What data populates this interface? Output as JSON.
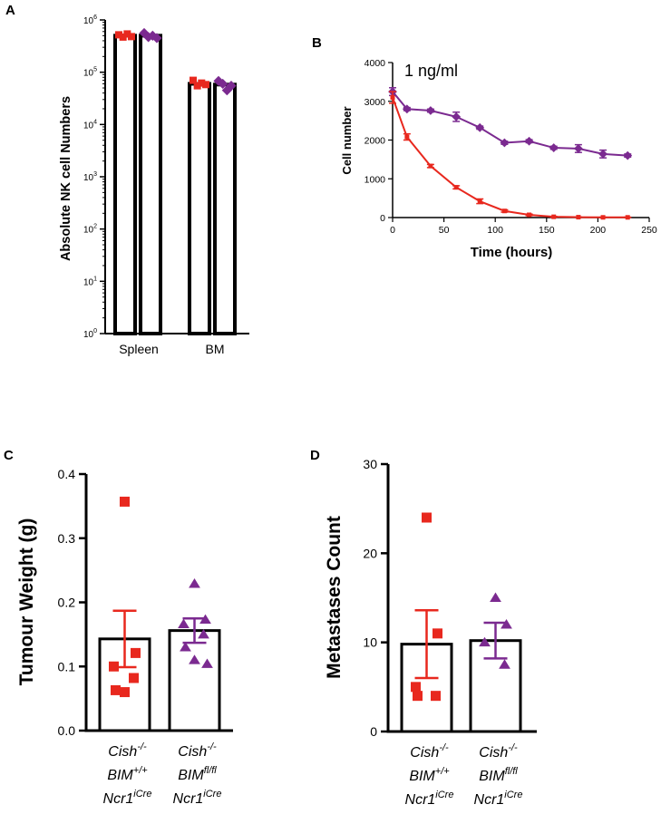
{
  "colors": {
    "red": "#E8281E",
    "purple": "#7B2A90",
    "axis": "#000000"
  },
  "chart_data": [
    {
      "panel": "A",
      "type": "bar",
      "yscale": "log",
      "ylabel": "Absolute NK cell Numbers",
      "xlabel": "",
      "ylim": [
        1,
        1000000
      ],
      "ytick_labels": [
        {
          "base": "10",
          "exp": "0"
        },
        {
          "base": "10",
          "exp": "1"
        },
        {
          "base": "10",
          "exp": "2"
        },
        {
          "base": "10",
          "exp": "3"
        },
        {
          "base": "10",
          "exp": "4"
        },
        {
          "base": "10",
          "exp": "5"
        },
        {
          "base": "10",
          "exp": "6"
        }
      ],
      "categories": [
        "Spleen",
        "BM"
      ],
      "series": [
        {
          "name": "red squares",
          "color": "#E8281E",
          "values": [
            500000,
            60000
          ],
          "points": [
            [
              520000,
              470000,
              540000,
              480000
            ],
            [
              70000,
              55000,
              62000,
              58000
            ]
          ]
        },
        {
          "name": "purple diamonds",
          "color": "#7B2A90",
          "values": [
            500000,
            58000
          ],
          "points": [
            [
              560000,
              470000,
              500000,
              450000
            ],
            [
              68000,
              60000,
              45000,
              55000
            ]
          ]
        }
      ]
    },
    {
      "panel": "B",
      "type": "line",
      "title": "1 ng/ml",
      "xlabel": "Time (hours)",
      "ylabel": "Cell number",
      "xlim": [
        0,
        250
      ],
      "ylim": [
        0,
        4000
      ],
      "xticks": [
        0,
        50,
        100,
        150,
        200,
        250
      ],
      "yticks": [
        0,
        1000,
        2000,
        3000,
        4000
      ],
      "series": [
        {
          "name": "purple",
          "color": "#7B2A90",
          "marker": "diamond",
          "x": [
            0,
            14,
            37,
            62,
            85,
            109,
            133,
            157,
            181,
            205,
            229
          ],
          "y": [
            3250,
            2800,
            2760,
            2600,
            2320,
            1930,
            1970,
            1800,
            1780,
            1640,
            1600
          ],
          "err": [
            100,
            40,
            40,
            120,
            40,
            40,
            40,
            40,
            100,
            100,
            40
          ]
        },
        {
          "name": "red",
          "color": "#E8281E",
          "marker": "square",
          "x": [
            0,
            14,
            37,
            62,
            85,
            109,
            133,
            157,
            181,
            205,
            229
          ],
          "y": [
            3100,
            2080,
            1330,
            780,
            420,
            170,
            70,
            20,
            10,
            5,
            5
          ],
          "err": [
            150,
            80,
            40,
            40,
            60,
            30,
            20,
            10,
            5,
            5,
            5
          ]
        }
      ]
    },
    {
      "panel": "C",
      "type": "bar",
      "ylabel": "Tumour Weight (g)",
      "ylim": [
        0,
        0.4
      ],
      "yticks": [
        "0.0",
        "0.1",
        "0.2",
        "0.3",
        "0.4"
      ],
      "yvalues": [
        0,
        0.1,
        0.2,
        0.3,
        0.4
      ],
      "categories": [
        {
          "line1_base": "Cish",
          "line1_sup": "-/-",
          "line2_base": "BIM",
          "line2_sup": "+/+",
          "line3_base": "Ncr1",
          "line3_sup": "iCre"
        },
        {
          "line1_base": "Cish",
          "line1_sup": "-/-",
          "line2_base": "BIM",
          "line2_sup": "fl/fl",
          "line3_base": "Ncr1",
          "line3_sup": "iCre"
        }
      ],
      "series": [
        {
          "name": "Cish-/- BIM+/+ Ncr1iCre",
          "color": "#E8281E",
          "marker": "square",
          "mean": 0.143,
          "sem": 0.044,
          "points": [
            0.357,
            0.121,
            0.1,
            0.063,
            0.06,
            0.082
          ]
        },
        {
          "name": "Cish-/- BIMfl/fl Ncr1iCre",
          "color": "#7B2A90",
          "marker": "triangle",
          "mean": 0.156,
          "sem": 0.019,
          "points": [
            0.229,
            0.173,
            0.166,
            0.15,
            0.13,
            0.11,
            0.104
          ]
        }
      ]
    },
    {
      "panel": "D",
      "type": "bar",
      "ylabel": "Metastases Count",
      "ylim": [
        0,
        30
      ],
      "yticks": [
        "0",
        "10",
        "20",
        "30"
      ],
      "yvalues": [
        0,
        10,
        20,
        30
      ],
      "categories": [
        {
          "line1_base": "Cish",
          "line1_sup": "-/-",
          "line2_base": "BIM",
          "line2_sup": "+/+",
          "line3_base": "Ncr1",
          "line3_sup": "iCre"
        },
        {
          "line1_base": "Cish",
          "line1_sup": "-/-",
          "line2_base": "BIM",
          "line2_sup": "fl/fl",
          "line3_base": "Ncr1",
          "line3_sup": "iCre"
        }
      ],
      "series": [
        {
          "name": "Cish-/- BIM+/+ Ncr1iCre",
          "color": "#E8281E",
          "marker": "square",
          "mean": 9.8,
          "sem": 3.8,
          "points": [
            24,
            11,
            5,
            4,
            4
          ]
        },
        {
          "name": "Cish-/- BIMfl/fl Ncr1iCre",
          "color": "#7B2A90",
          "marker": "triangle",
          "mean": 10.2,
          "sem": 2.0,
          "points": [
            15,
            12,
            10,
            7.5
          ]
        }
      ]
    }
  ]
}
